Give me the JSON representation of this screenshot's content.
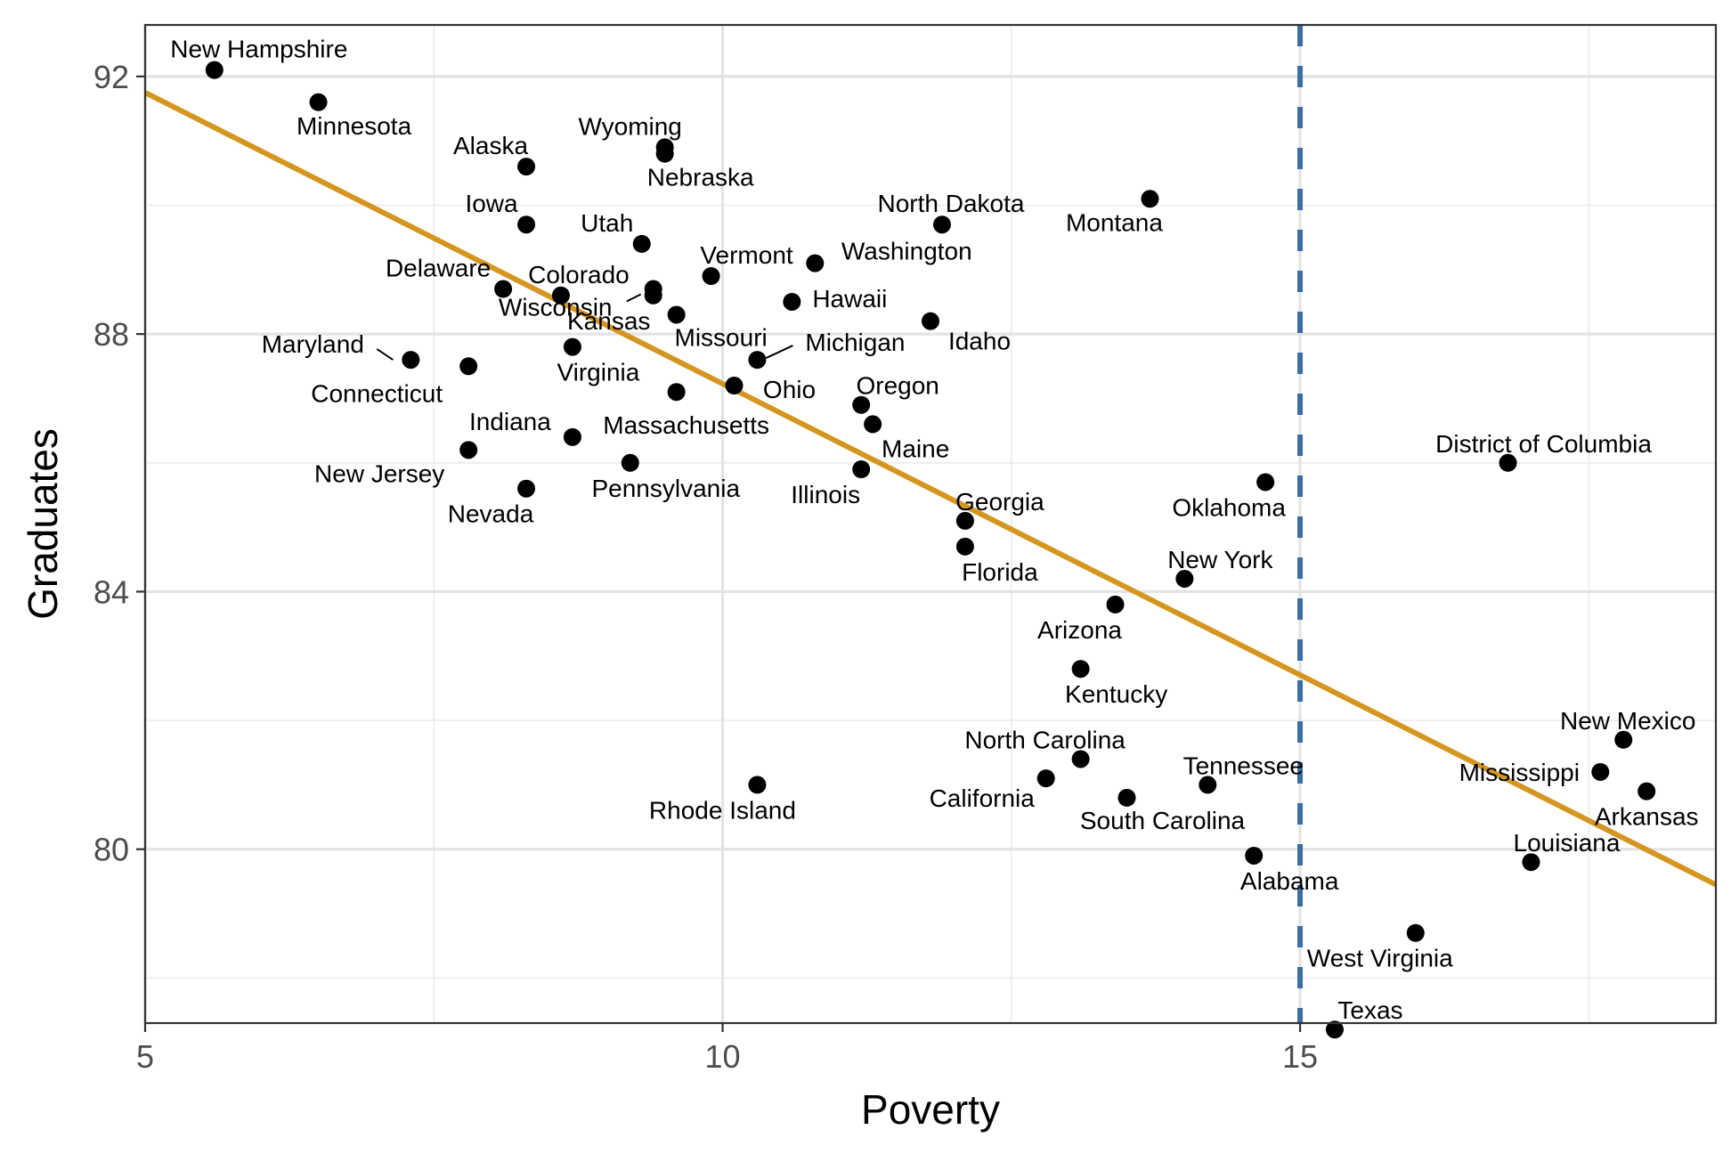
{
  "chart_data": {
    "type": "scatter",
    "title": "",
    "xlabel": "Poverty",
    "ylabel": "Graduates",
    "xlim": [
      5,
      18.6
    ],
    "ylim": [
      77.3,
      92.8
    ],
    "xticks": [
      5,
      10,
      15
    ],
    "yticks": [
      80,
      84,
      88,
      92
    ],
    "grid": true,
    "vline": {
      "x": 15,
      "color": "#3a6ea5",
      "style": "dashed"
    },
    "trendline": {
      "x": [
        5,
        18.6
      ],
      "y": [
        91.75,
        79.45
      ],
      "color": "#d4961e"
    },
    "point_color": "#000000",
    "points": [
      {
        "name": "New Hampshire",
        "x": 5.6,
        "y": 92.1
      },
      {
        "name": "Minnesota",
        "x": 6.5,
        "y": 91.6
      },
      {
        "name": "Alaska",
        "x": 8.3,
        "y": 90.6
      },
      {
        "name": "Wyoming",
        "x": 9.5,
        "y": 90.9
      },
      {
        "name": "Nebraska",
        "x": 9.5,
        "y": 90.8
      },
      {
        "name": "Iowa",
        "x": 8.3,
        "y": 89.7
      },
      {
        "name": "Utah",
        "x": 9.3,
        "y": 89.4
      },
      {
        "name": "North Dakota",
        "x": 11.9,
        "y": 89.7
      },
      {
        "name": "Montana",
        "x": 13.7,
        "y": 90.1
      },
      {
        "name": "Vermont",
        "x": 9.9,
        "y": 88.9
      },
      {
        "name": "Washington",
        "x": 10.8,
        "y": 89.1
      },
      {
        "name": "Delaware",
        "x": 8.1,
        "y": 88.7
      },
      {
        "name": "Colorado",
        "x": 8.6,
        "y": 88.6
      },
      {
        "name": "Wisconsin",
        "x": 9.4,
        "y": 88.7
      },
      {
        "name": "Kansas",
        "x": 9.4,
        "y": 88.6
      },
      {
        "name": "Hawaii",
        "x": 10.6,
        "y": 88.5
      },
      {
        "name": "Missouri",
        "x": 9.6,
        "y": 88.3
      },
      {
        "name": "Idaho",
        "x": 11.8,
        "y": 88.2
      },
      {
        "name": "Maryland",
        "x": 7.3,
        "y": 87.6
      },
      {
        "name": "Connecticut",
        "x": 7.8,
        "y": 87.5
      },
      {
        "name": "Virginia",
        "x": 8.7,
        "y": 87.8
      },
      {
        "name": "Michigan",
        "x": 10.3,
        "y": 87.6
      },
      {
        "name": "Ohio",
        "x": 10.1,
        "y": 87.2
      },
      {
        "name": "Oregon",
        "x": 11.2,
        "y": 86.9
      },
      {
        "name": "Massachusetts",
        "x": 9.6,
        "y": 87.1
      },
      {
        "name": "Maine",
        "x": 11.3,
        "y": 86.6
      },
      {
        "name": "Indiana",
        "x": 8.7,
        "y": 86.4
      },
      {
        "name": "New Jersey",
        "x": 7.8,
        "y": 86.2
      },
      {
        "name": "Pennsylvania",
        "x": 9.2,
        "y": 86.0
      },
      {
        "name": "Illinois",
        "x": 11.2,
        "y": 85.9
      },
      {
        "name": "Nevada",
        "x": 8.3,
        "y": 85.6
      },
      {
        "name": "Georgia",
        "x": 12.1,
        "y": 85.1
      },
      {
        "name": "Florida",
        "x": 12.1,
        "y": 84.7
      },
      {
        "name": "Oklahoma",
        "x": 14.7,
        "y": 85.7
      },
      {
        "name": "District of Columbia",
        "x": 16.8,
        "y": 86.0
      },
      {
        "name": "New York",
        "x": 14.0,
        "y": 84.2
      },
      {
        "name": "Arizona",
        "x": 13.4,
        "y": 83.8
      },
      {
        "name": "Kentucky",
        "x": 13.1,
        "y": 82.8
      },
      {
        "name": "North Carolina",
        "x": 13.1,
        "y": 81.4
      },
      {
        "name": "California",
        "x": 12.8,
        "y": 81.1
      },
      {
        "name": "Tennessee",
        "x": 14.2,
        "y": 81.0
      },
      {
        "name": "South Carolina",
        "x": 13.5,
        "y": 80.8
      },
      {
        "name": "Rhode Island",
        "x": 10.3,
        "y": 81.0
      },
      {
        "name": "Alabama",
        "x": 14.6,
        "y": 79.9
      },
      {
        "name": "New Mexico",
        "x": 17.8,
        "y": 81.7
      },
      {
        "name": "Mississippi",
        "x": 17.6,
        "y": 81.2
      },
      {
        "name": "Arkansas",
        "x": 18.0,
        "y": 80.9
      },
      {
        "name": "Louisiana",
        "x": 17.0,
        "y": 79.8
      },
      {
        "name": "West Virginia",
        "x": 16.0,
        "y": 78.7
      },
      {
        "name": "Texas",
        "x": 15.3,
        "y": 77.2
      }
    ]
  }
}
